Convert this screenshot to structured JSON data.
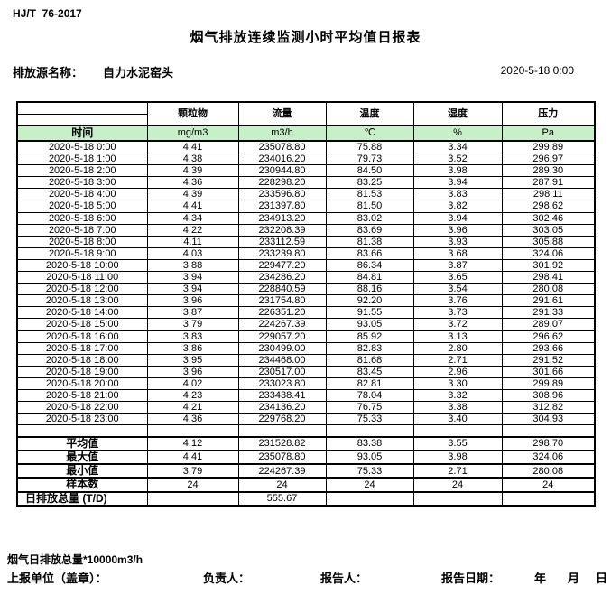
{
  "header": {
    "doc_code": "HJ/T  76-2017",
    "title": "烟气排放连续监测小时平均值日报表",
    "source_label": "排放源名称：",
    "source_name": "自力水泥窑头",
    "datetime": "2020-5-18 0:00"
  },
  "colors": {
    "header_green": "#c8f0c8",
    "border": "#000000",
    "background": "#ffffff"
  },
  "table": {
    "time_header": "时间",
    "columns": [
      {
        "key": "particulate",
        "name": "颗粒物",
        "unit": "mg/m3"
      },
      {
        "key": "flow",
        "name": "流量",
        "unit": "m3/h"
      },
      {
        "key": "temperature",
        "name": "温度",
        "unit": "℃"
      },
      {
        "key": "humidity",
        "name": "湿度",
        "unit": "%"
      },
      {
        "key": "pressure",
        "name": "压力",
        "unit": "Pa"
      }
    ],
    "rows": [
      {
        "time": "2020-5-18 0:00",
        "values": [
          "4.41",
          "235078.80",
          "75.88",
          "3.34",
          "299.89"
        ]
      },
      {
        "time": "2020-5-18 1:00",
        "values": [
          "4.38",
          "234016.20",
          "79.73",
          "3.52",
          "296.97"
        ]
      },
      {
        "time": "2020-5-18 2:00",
        "values": [
          "4.39",
          "230944.80",
          "84.50",
          "3.98",
          "289.30"
        ]
      },
      {
        "time": "2020-5-18 3:00",
        "values": [
          "4.36",
          "228298.20",
          "83.25",
          "3.94",
          "287.91"
        ]
      },
      {
        "time": "2020-5-18 4:00",
        "values": [
          "4.39",
          "233596.80",
          "81.53",
          "3.83",
          "298.11"
        ]
      },
      {
        "time": "2020-5-18 5:00",
        "values": [
          "4.41",
          "231397.80",
          "81.50",
          "3.82",
          "298.62"
        ]
      },
      {
        "time": "2020-5-18 6:00",
        "values": [
          "4.34",
          "234913.20",
          "83.02",
          "3.94",
          "302.46"
        ]
      },
      {
        "time": "2020-5-18 7:00",
        "values": [
          "4.22",
          "232208.39",
          "83.69",
          "3.96",
          "303.05"
        ]
      },
      {
        "time": "2020-5-18 8:00",
        "values": [
          "4.11",
          "233112.59",
          "81.38",
          "3.93",
          "305.88"
        ]
      },
      {
        "time": "2020-5-18 9:00",
        "values": [
          "4.03",
          "233239.80",
          "83.66",
          "3.68",
          "324.06"
        ]
      },
      {
        "time": "2020-5-18 10:00",
        "values": [
          "3.88",
          "229477.20",
          "86.34",
          "3.87",
          "301.92"
        ]
      },
      {
        "time": "2020-5-18 11:00",
        "values": [
          "3.94",
          "234286.20",
          "84.81",
          "3.65",
          "298.41"
        ]
      },
      {
        "time": "2020-5-18 12:00",
        "values": [
          "3.94",
          "228840.59",
          "88.16",
          "3.54",
          "280.08"
        ]
      },
      {
        "time": "2020-5-18 13:00",
        "values": [
          "3.96",
          "231754.80",
          "92.20",
          "3.76",
          "291.61"
        ]
      },
      {
        "time": "2020-5-18 14:00",
        "values": [
          "3.87",
          "226351.20",
          "91.55",
          "3.73",
          "291.33"
        ]
      },
      {
        "time": "2020-5-18 15:00",
        "values": [
          "3.79",
          "224267.39",
          "93.05",
          "3.72",
          "289.07"
        ]
      },
      {
        "time": "2020-5-18 16:00",
        "values": [
          "3.83",
          "229057.20",
          "85.92",
          "3.13",
          "296.62"
        ]
      },
      {
        "time": "2020-5-18 17:00",
        "values": [
          "3.86",
          "230499.00",
          "82.83",
          "2.80",
          "293.66"
        ]
      },
      {
        "time": "2020-5-18 18:00",
        "values": [
          "3.95",
          "234468.00",
          "81.68",
          "2.71",
          "291.52"
        ]
      },
      {
        "time": "2020-5-18 19:00",
        "values": [
          "3.96",
          "230517.00",
          "83.45",
          "2.96",
          "301.66"
        ]
      },
      {
        "time": "2020-5-18 20:00",
        "values": [
          "4.02",
          "233023.80",
          "82.81",
          "3.30",
          "299.89"
        ]
      },
      {
        "time": "2020-5-18 21:00",
        "values": [
          "4.23",
          "233438.41",
          "78.04",
          "3.32",
          "308.96"
        ]
      },
      {
        "time": "2020-5-18 22:00",
        "values": [
          "4.21",
          "234136.20",
          "76.75",
          "3.38",
          "312.82"
        ]
      },
      {
        "time": "2020-5-18 23:00",
        "values": [
          "4.36",
          "229768.20",
          "75.33",
          "3.40",
          "304.93"
        ]
      }
    ],
    "summary": [
      {
        "key": "average",
        "label": "平均值",
        "values": [
          "4.12",
          "231528.82",
          "83.38",
          "3.55",
          "298.70"
        ]
      },
      {
        "key": "maximum",
        "label": "最大值",
        "values": [
          "4.41",
          "235078.80",
          "93.05",
          "3.98",
          "324.06"
        ]
      },
      {
        "key": "minimum",
        "label": "最小值",
        "values": [
          "3.79",
          "224267.39",
          "75.33",
          "2.71",
          "280.08"
        ]
      },
      {
        "key": "sample-count",
        "label": "样本数",
        "values": [
          "24",
          "24",
          "24",
          "24",
          "24"
        ]
      },
      {
        "key": "daily-total",
        "label": "日排放总量 (T/D)",
        "label_align": "left",
        "values": [
          "",
          "555.67",
          "",
          "",
          ""
        ]
      }
    ]
  },
  "footer": {
    "note": "烟气日排放总量*10000m3/h",
    "stamp_label": "上报单位（盖章）：",
    "manager_label": "负责人：",
    "reporter_label": "报告人：",
    "report_date_label": "报告日期：",
    "year_label": "年",
    "month_label": "月",
    "day_label": "日"
  }
}
